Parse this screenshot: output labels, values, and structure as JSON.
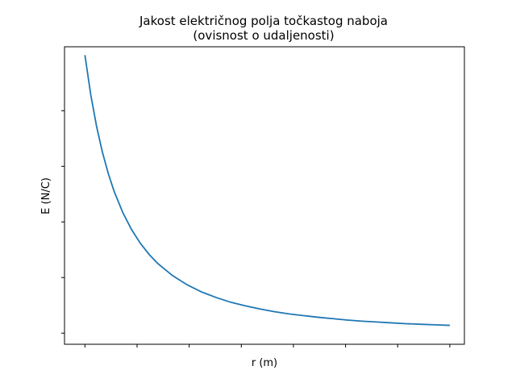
{
  "chart_data": {
    "type": "line",
    "title_line1": "Jakost električnog polja točkastog naboja",
    "title_line2": "(ovisnost o udaljenosti)",
    "xlabel": "r (m)",
    "ylabel": "E (N/C)",
    "x_tick_labels_visible": false,
    "y_tick_labels_visible": false,
    "x_tick_count": 8,
    "y_tick_count": 5,
    "grid": false,
    "legend": "none",
    "line_color": "#1f77b4",
    "function": "E = k/r^2",
    "xlim": [
      0.18,
      1.55
    ],
    "ylim": [
      -0.4,
      10.3
    ],
    "series": [
      {
        "x": [
          0.25,
          0.27,
          0.29,
          0.31,
          0.33,
          0.35,
          0.38,
          0.41,
          0.44,
          0.47,
          0.5,
          0.55,
          0.6,
          0.65,
          0.7,
          0.75,
          0.8,
          0.85,
          0.9,
          0.95,
          1.0,
          1.05,
          1.1,
          1.15,
          1.2,
          1.25,
          1.3,
          1.35,
          1.4,
          1.45,
          1.5
        ],
        "y": [
          10.0,
          8.57,
          7.43,
          6.5,
          5.74,
          5.1,
          4.33,
          3.72,
          3.23,
          2.83,
          2.5,
          2.07,
          1.74,
          1.48,
          1.28,
          1.11,
          0.98,
          0.87,
          0.77,
          0.69,
          0.63,
          0.57,
          0.52,
          0.47,
          0.43,
          0.4,
          0.37,
          0.34,
          0.32,
          0.3,
          0.28
        ]
      }
    ]
  }
}
